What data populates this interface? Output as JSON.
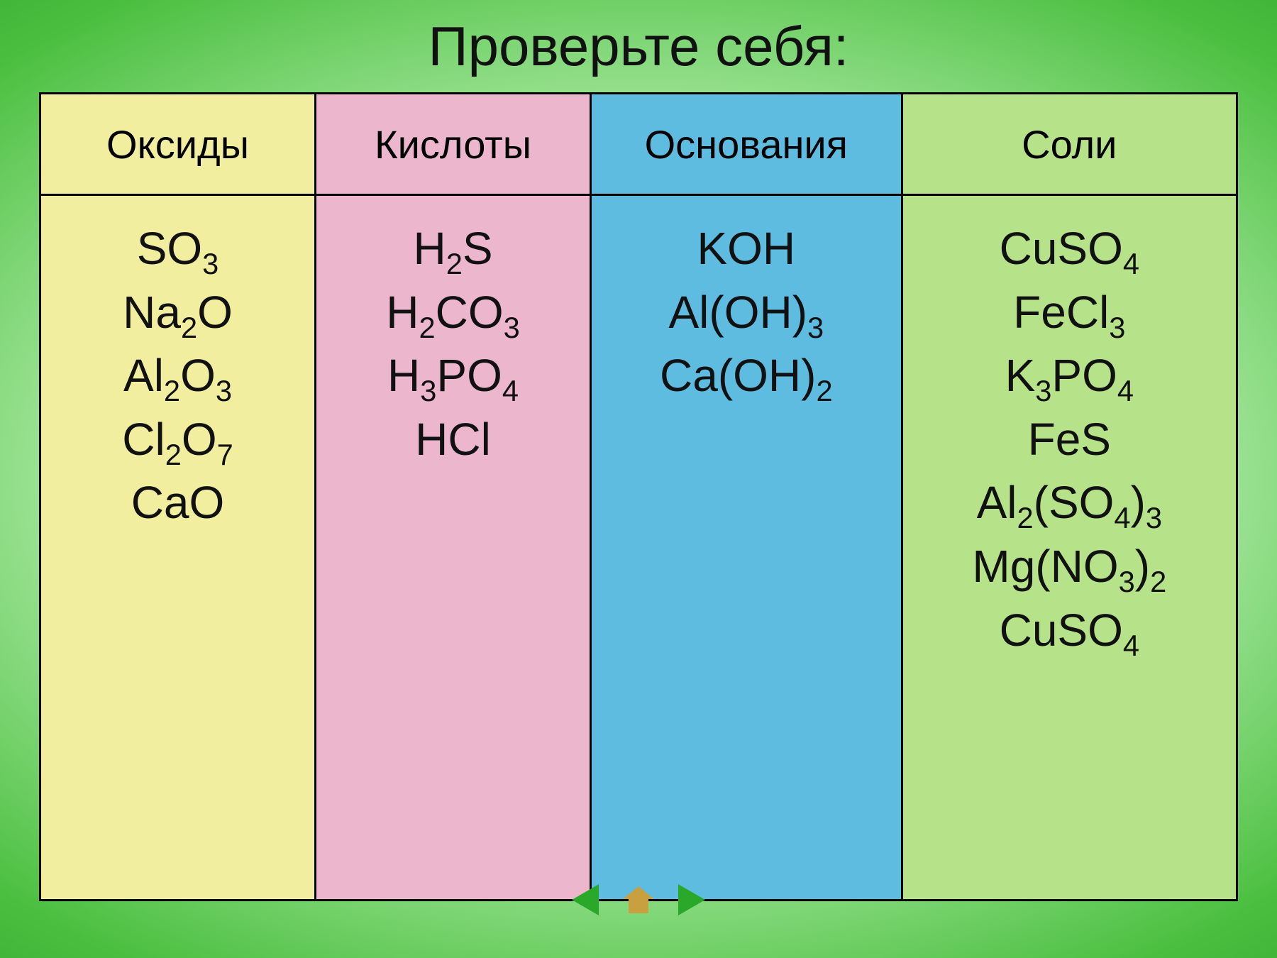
{
  "title": "Проверьте себя:",
  "table": {
    "columns": [
      {
        "header": "Оксиды",
        "bg": "#f2eea0",
        "formulas": [
          [
            {
              "t": "SO"
            },
            {
              "s": "3"
            }
          ],
          [
            {
              "t": "Na"
            },
            {
              "s": "2"
            },
            {
              "t": "O"
            }
          ],
          [
            {
              "t": "Al"
            },
            {
              "s": "2"
            },
            {
              "t": "O"
            },
            {
              "s": "3"
            }
          ],
          [
            {
              "t": "Cl"
            },
            {
              "s": "2"
            },
            {
              "t": "O"
            },
            {
              "s": "7"
            }
          ],
          [
            {
              "t": "CaO"
            }
          ]
        ]
      },
      {
        "header": "Кислоты",
        "bg": "#ecb6cc",
        "formulas": [
          [
            {
              "t": "H"
            },
            {
              "s": "2"
            },
            {
              "t": "S"
            }
          ],
          [
            {
              "t": "H"
            },
            {
              "s": "2"
            },
            {
              "t": "CO"
            },
            {
              "s": "3"
            }
          ],
          [
            {
              "t": "H"
            },
            {
              "s": "3"
            },
            {
              "t": "PO"
            },
            {
              "s": "4"
            }
          ],
          [
            {
              "t": "HCl"
            }
          ]
        ]
      },
      {
        "header": "Основания",
        "bg": "#5dbce0",
        "formulas": [
          [
            {
              "t": "KOH"
            }
          ],
          [
            {
              "t": "Al(OH)"
            },
            {
              "s": "3"
            }
          ],
          [
            {
              "t": "Ca(OH)"
            },
            {
              "s": "2"
            }
          ]
        ]
      },
      {
        "header": "Соли",
        "bg": "#b6e289",
        "formulas": [
          [
            {
              "t": "CuSO"
            },
            {
              "s": "4"
            }
          ],
          [
            {
              "t": "FeCl"
            },
            {
              "s": "3"
            }
          ],
          [
            {
              "t": "K"
            },
            {
              "s": "3"
            },
            {
              "t": "PO"
            },
            {
              "s": "4"
            }
          ],
          [
            {
              "t": "FeS"
            }
          ],
          [
            {
              "t": "Al"
            },
            {
              "s": "2"
            },
            {
              "t": "(SO"
            },
            {
              "s": "4"
            },
            {
              "t": ")"
            },
            {
              "s": "3"
            }
          ],
          [
            {
              "t": "Mg(NO"
            },
            {
              "s": "3"
            },
            {
              "t": ")"
            },
            {
              "s": "2"
            }
          ],
          [
            {
              "t": "CuSO"
            },
            {
              "s": "4"
            }
          ]
        ]
      }
    ],
    "header_fontsize": 56,
    "cell_fontsize": 64,
    "border_color": "#000000",
    "column_widths": [
      "23%",
      "23%",
      "26%",
      "28%"
    ]
  },
  "nav": {
    "prev_color": "#2aa82a",
    "next_color": "#2aa82a",
    "home_color": "#c8a040"
  },
  "background": {
    "gradient_type": "radial",
    "colors": [
      "#ffffff",
      "#a8e8a0",
      "#4abf3f",
      "#1f8f1f",
      "#0e6e0e"
    ]
  }
}
